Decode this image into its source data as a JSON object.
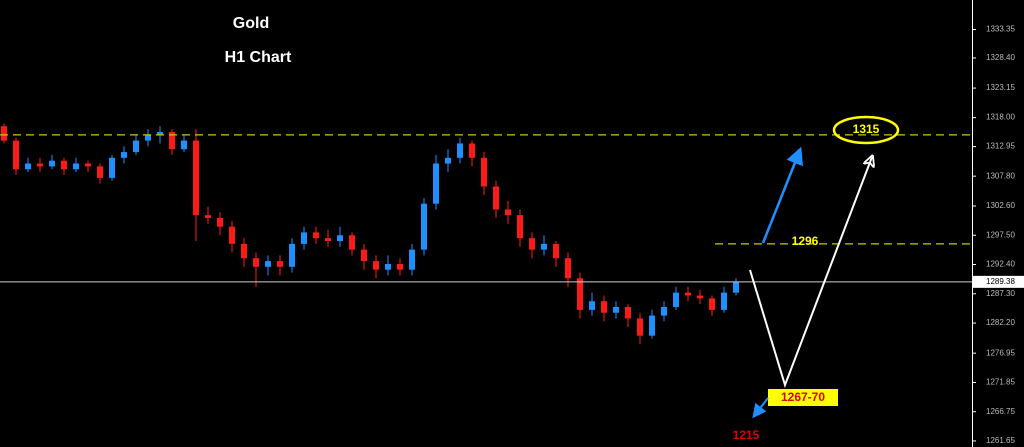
{
  "chart_data": {
    "type": "candlestick",
    "title": "Gold",
    "subtitle": "H1 Chart",
    "open": [
      1316.5,
      1314,
      1309,
      1310,
      1309.5,
      1310.5,
      1309,
      1310,
      1309.5,
      1307.5,
      1311,
      1312,
      1314,
      1315,
      1315.5,
      1312.5,
      1314,
      1301,
      1300.5,
      1299,
      1296,
      1293.5,
      1292,
      1293,
      1292,
      1296,
      1298,
      1297,
      1296.5,
      1297.5,
      1295,
      1293,
      1291.5,
      1292.5,
      1291.5,
      1295,
      1303,
      1310,
      1311,
      1313.5,
      1311,
      1306,
      1302,
      1301,
      1297,
      1295,
      1296,
      1293.5,
      1290,
      1284.5,
      1286,
      1284,
      1285,
      1283,
      1280,
      1283.5,
      1285,
      1287.5,
      1287,
      1286.5,
      1284.5,
      1287.5
    ],
    "high": [
      1317,
      1314.5,
      1311,
      1311,
      1311.5,
      1311,
      1311,
      1310.5,
      1310,
      1311.5,
      1313,
      1315,
      1316,
      1316.5,
      1316,
      1315,
      1316,
      1302.5,
      1301.5,
      1300,
      1297,
      1294.5,
      1294,
      1294,
      1297,
      1299,
      1299,
      1298.5,
      1299,
      1298,
      1296,
      1294,
      1294,
      1293.5,
      1296,
      1304,
      1311.5,
      1312.5,
      1314.5,
      1314,
      1312,
      1307,
      1303.5,
      1302,
      1298,
      1297.5,
      1296.5,
      1294.5,
      1291,
      1287.5,
      1287,
      1286,
      1285.5,
      1284,
      1284.5,
      1286,
      1288.5,
      1288.5,
      1288,
      1287,
      1288.5,
      1290
    ],
    "low": [
      1313.5,
      1308,
      1308.5,
      1308.5,
      1309,
      1308,
      1308.5,
      1308.5,
      1306.5,
      1307,
      1310,
      1311.5,
      1313,
      1313.5,
      1311.5,
      1312,
      1296.5,
      1299.5,
      1297.5,
      1294.5,
      1292,
      1288.5,
      1290.5,
      1290.5,
      1291,
      1295,
      1296,
      1295.5,
      1295.5,
      1294,
      1291.5,
      1290,
      1290.5,
      1290.5,
      1290.5,
      1294,
      1302,
      1308.5,
      1310,
      1309.5,
      1304.5,
      1300.5,
      1299.5,
      1295.5,
      1293.5,
      1294,
      1292,
      1288.5,
      1283,
      1283.5,
      1282.5,
      1283,
      1281.5,
      1278.5,
      1279.5,
      1282.5,
      1284.5,
      1286,
      1285.5,
      1283.5,
      1284,
      1287
    ],
    "close": [
      1314,
      1309,
      1310,
      1309.5,
      1310.5,
      1309,
      1310,
      1309.5,
      1307.5,
      1311,
      1312,
      1314,
      1315,
      1315.5,
      1312.5,
      1314,
      1301,
      1300.5,
      1299,
      1296,
      1293.5,
      1292,
      1293,
      1292,
      1296,
      1298,
      1297,
      1296.5,
      1297.5,
      1295,
      1293,
      1291.5,
      1292.5,
      1291.5,
      1295,
      1303,
      1310,
      1311,
      1313.5,
      1311,
      1306,
      1302,
      1301,
      1297,
      1295,
      1296,
      1293.5,
      1290,
      1284.5,
      1286,
      1284,
      1285,
      1283,
      1280,
      1283.5,
      1285,
      1287.5,
      1287,
      1286.5,
      1284.5,
      1287.5,
      1289.38
    ],
    "up_color": "#1e90ff",
    "down_color": "#ff1a1a",
    "ylim": [
      1260.6,
      1338.5
    ],
    "yticks": [
      {
        "value": 1333.35,
        "label": "1333.35"
      },
      {
        "value": 1328.4,
        "label": "1328.40"
      },
      {
        "value": 1323.15,
        "label": "1323.15"
      },
      {
        "value": 1318,
        "label": "1318.00"
      },
      {
        "value": 1312.95,
        "label": "1312.95"
      },
      {
        "value": 1307.8,
        "label": "1307.80"
      },
      {
        "value": 1302.6,
        "label": "1302.60"
      },
      {
        "value": 1297.5,
        "label": "1297.50"
      },
      {
        "value": 1292.4,
        "label": "1292.40"
      },
      {
        "value": 1287.3,
        "label": "1287.30"
      },
      {
        "value": 1282.2,
        "label": "1282.20"
      },
      {
        "value": 1276.95,
        "label": "1276.95"
      },
      {
        "value": 1271.85,
        "label": "1271.85"
      },
      {
        "value": 1266.75,
        "label": "1266.75"
      },
      {
        "value": 1261.65,
        "label": "1261.65"
      }
    ],
    "current_price": 1289.38,
    "levels": [
      1315,
      1296
    ],
    "level_color": "#c8c800",
    "annotations": [
      "1267-70",
      "1215"
    ]
  }
}
